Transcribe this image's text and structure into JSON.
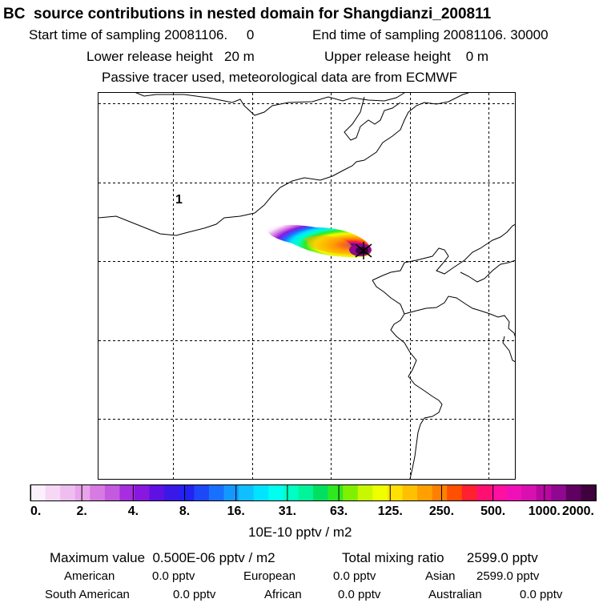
{
  "header": {
    "title": "BC  source contributions in nested domain for Shangdianzi_200811",
    "start_time": "Start time of sampling 20081106.     0",
    "end_time": "End time of sampling 20081106. 30000",
    "lower_release": "Lower release height   20 m",
    "upper_release": "Upper release height    0 m",
    "tracer_note": "Passive tracer used, meteorological data are from ECMWF"
  },
  "map": {
    "region_label": "1",
    "marker": "station-cross"
  },
  "colorbar": {
    "tick_labels": [
      "0.",
      "2.",
      "4.",
      "8.",
      "16.",
      "31.",
      "63.",
      "125.",
      "250.",
      "500.",
      "1000.",
      "2000."
    ],
    "unit": "10E-10 pptv / m2",
    "colors": [
      "#fdf0fd",
      "#f6d8f6",
      "#eebeef",
      "#e8a4ea",
      "#d77ae2",
      "#c35ae0",
      "#a72ee0",
      "#8818e0",
      "#5f10e3",
      "#3a18e8",
      "#2222f2",
      "#1c48f7",
      "#1870ff",
      "#1498ff",
      "#10bfff",
      "#00e4ff",
      "#00ffef",
      "#00ffc4",
      "#00f59a",
      "#00e060",
      "#30e820",
      "#80f000",
      "#c8f800",
      "#f0ff00",
      "#ffe000",
      "#ffc000",
      "#ffa000",
      "#ff8000",
      "#ff5000",
      "#ff2030",
      "#ff1070",
      "#ff10a0",
      "#f010b8",
      "#d810b0",
      "#b808a0",
      "#900890",
      "#600060",
      "#400040"
    ]
  },
  "summary": {
    "max_value": "Maximum value  0.500E-06 pptv / m2",
    "total_mixing": "Total mixing ratio      2599.0 pptv",
    "american_label": "American",
    "american_value": "0.0 pptv",
    "european_label": "European",
    "european_value": "0.0 pptv",
    "asian_label": "Asian",
    "asian_value": "2599.0 pptv",
    "south_american_label": "South American",
    "south_american_value": "0.0 pptv",
    "african_label": "African",
    "african_value": "0.0 pptv",
    "australian_label": "Australian",
    "australian_value": "0.0 pptv"
  }
}
